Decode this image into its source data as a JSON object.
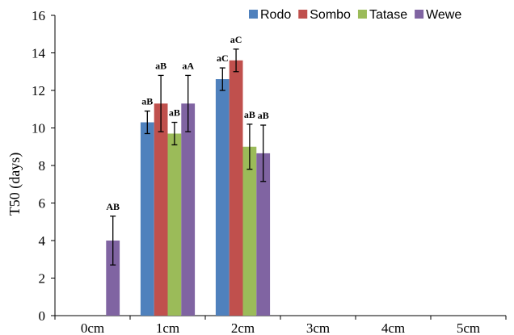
{
  "chart_data": {
    "type": "bar",
    "title": "",
    "xlabel": "",
    "ylabel": "T50 (days)",
    "ylim": [
      0,
      16
    ],
    "yticks": [
      "0",
      "2",
      "4",
      "6",
      "8",
      "10",
      "12",
      "14",
      "16"
    ],
    "categories": [
      "0cm",
      "1cm",
      "2cm",
      "3cm",
      "4cm",
      "5cm"
    ],
    "legend_position": "top-right",
    "grid": false,
    "series": [
      {
        "name": "Rodo",
        "color": "#4F81BD",
        "values": [
          null,
          10.3,
          12.6,
          null,
          null,
          null
        ],
        "errors": [
          null,
          0.6,
          0.6,
          null,
          null,
          null
        ],
        "labels": [
          null,
          "aB",
          "aC",
          null,
          null,
          null
        ]
      },
      {
        "name": "Sombo",
        "color": "#C0504D",
        "values": [
          null,
          11.3,
          13.6,
          null,
          null,
          null
        ],
        "errors": [
          null,
          1.5,
          0.6,
          null,
          null,
          null
        ],
        "labels": [
          null,
          "aB",
          "aC",
          null,
          null,
          null
        ]
      },
      {
        "name": "Tatase",
        "color": "#9BBB59",
        "values": [
          null,
          9.7,
          9.0,
          null,
          null,
          null
        ],
        "errors": [
          null,
          0.6,
          1.2,
          null,
          null,
          null
        ],
        "labels": [
          null,
          "aB",
          "aB",
          null,
          null,
          null
        ]
      },
      {
        "name": "Wewe",
        "color": "#8064A2",
        "values": [
          4.0,
          11.3,
          8.65,
          null,
          null,
          null
        ],
        "errors": [
          1.3,
          1.5,
          1.5,
          null,
          null,
          null
        ],
        "labels": [
          "AB",
          "aA",
          "aB",
          null,
          null,
          null
        ]
      }
    ]
  }
}
